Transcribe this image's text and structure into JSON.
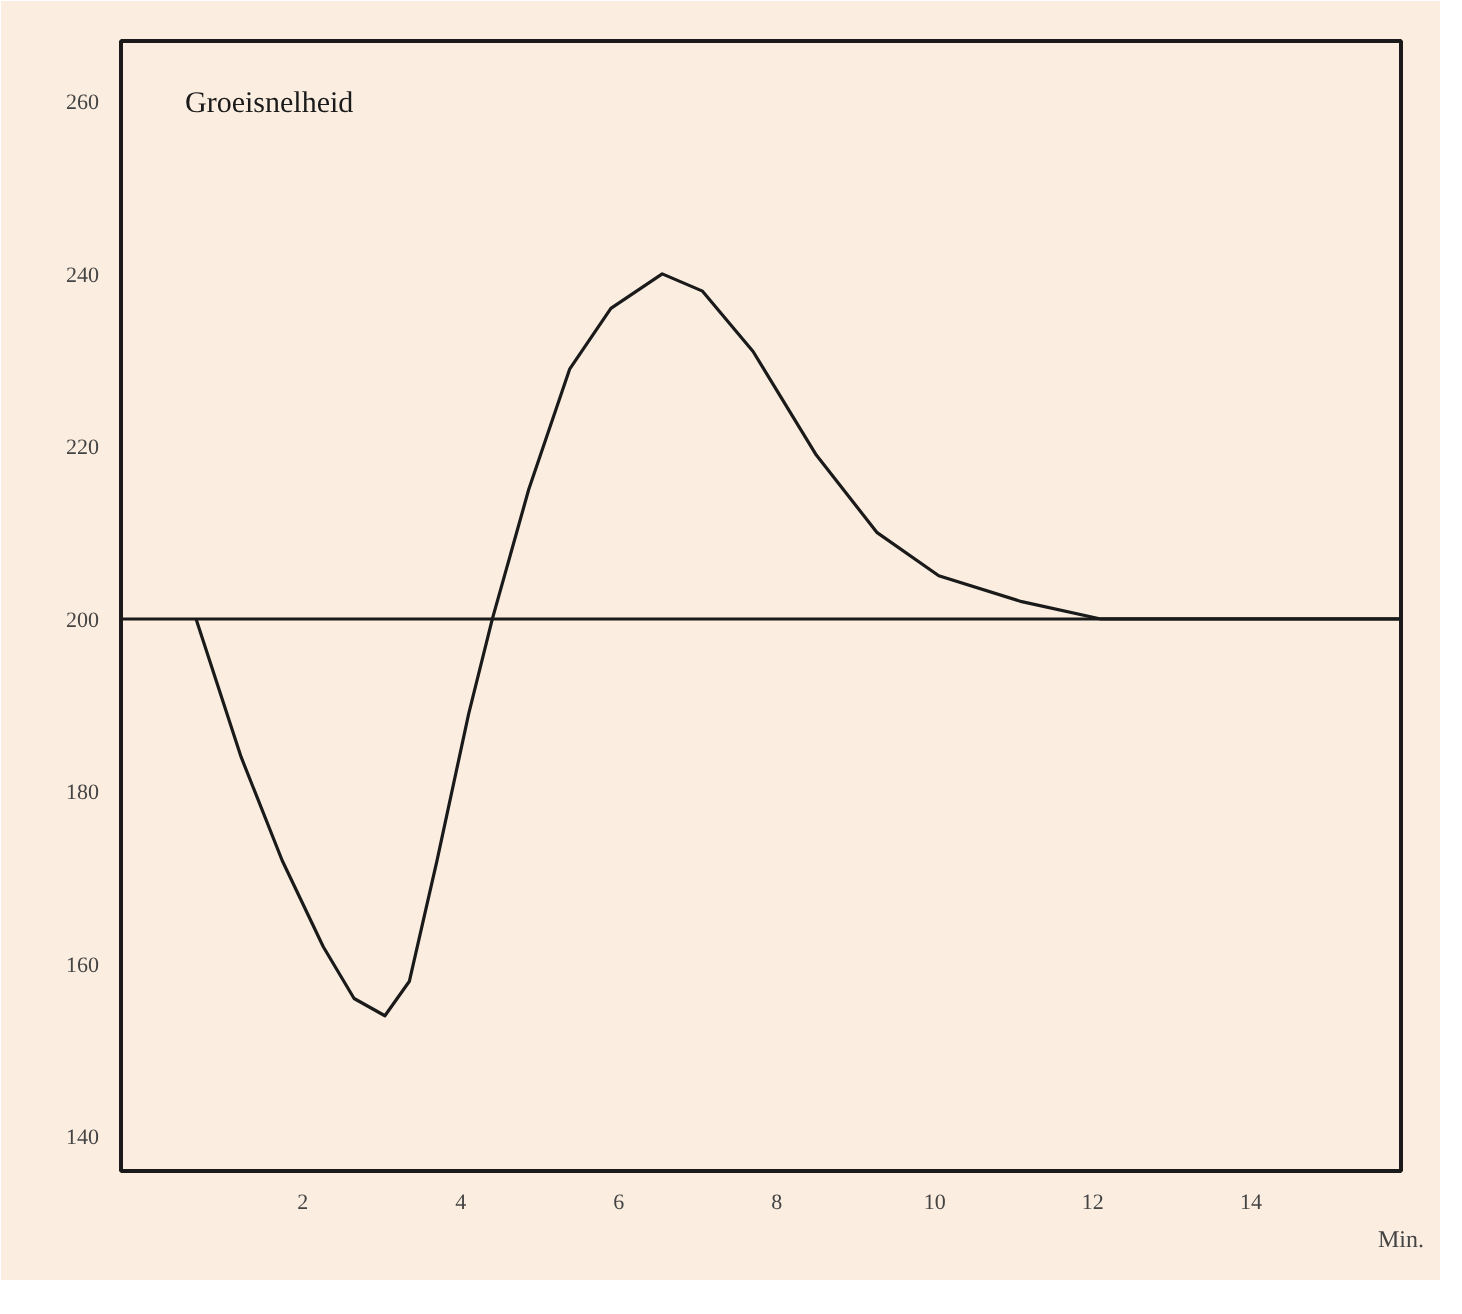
{
  "chart_data": {
    "type": "line",
    "title": "Groeisnelheid",
    "xlabel": "Min.",
    "x": [
      0.65,
      1.22,
      1.74,
      2.26,
      2.65,
      3.04,
      3.35,
      3.7,
      4.1,
      4.4,
      4.86,
      5.38,
      5.9,
      6.55,
      7.06,
      7.7,
      8.5,
      9.27,
      10.05,
      11.1,
      12.1,
      13.2,
      15.9
    ],
    "series": [
      {
        "color": "#1a1a1a",
        "values": [
          200,
          184,
          172,
          162,
          156,
          154,
          158,
          172,
          189,
          200,
          215,
          229,
          236,
          240,
          238,
          231,
          219,
          210,
          205,
          202,
          200,
          200,
          200
        ]
      }
    ],
    "xlim": [
      -0.3,
      15.9
    ],
    "ylim": [
      136,
      267
    ],
    "xticks": [
      2,
      4,
      6,
      8,
      10,
      12,
      14
    ],
    "yticks": [
      140,
      160,
      180,
      200,
      220,
      240,
      260
    ],
    "ref_lines": [
      {
        "axis": "y",
        "value": 200,
        "color": "#1a1a1a"
      }
    ],
    "grid": false,
    "marker": "none",
    "line_style": "solid"
  }
}
